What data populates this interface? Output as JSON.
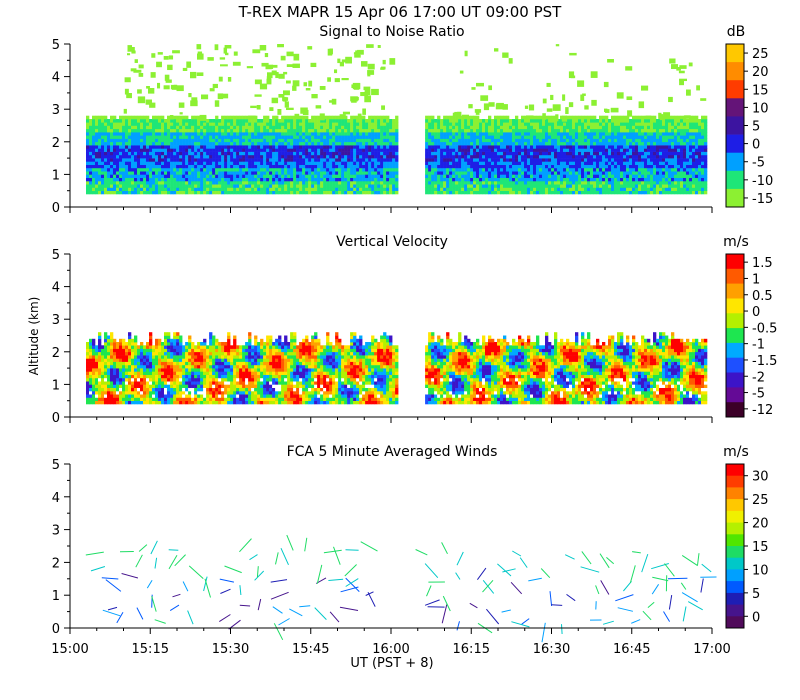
{
  "title": "T-REX  MAPR 15 Apr 06  17:00 UT  09:00  PST",
  "xlabel": "UT  (PST + 8)",
  "ylabel": "Altitude (km)",
  "x_ticks": [
    "15:00",
    "15:15",
    "15:30",
    "15:45",
    "16:00",
    "16:15",
    "16:30",
    "16:45",
    "17:00"
  ],
  "chart_data": [
    {
      "type": "heatmap",
      "title": "Signal to Noise Ratio",
      "unit": "dB",
      "ylim": [
        0,
        5
      ],
      "y_ticks": [
        0,
        1,
        2,
        3,
        4,
        5
      ],
      "xlim_minutes": [
        0,
        120
      ],
      "data_gap_minutes": [
        60,
        66
      ],
      "colorbar_labels": [
        "25",
        "20",
        "15",
        "10",
        "5",
        "0",
        "-5",
        "-10",
        "-15"
      ],
      "colorbar_colors": [
        "#ffc800",
        "#ff8c00",
        "#ff3c00",
        "#641478",
        "#3c14a0",
        "#1e1ee6",
        "#00a0ff",
        "#1ee678",
        "#8cf032"
      ]
    },
    {
      "type": "heatmap",
      "title": "Vertical Velocity",
      "unit": "m/s",
      "ylim": [
        0,
        5
      ],
      "y_ticks": [
        0,
        1,
        2,
        3,
        4,
        5
      ],
      "xlim_minutes": [
        0,
        120
      ],
      "data_gap_minutes": [
        60,
        66
      ],
      "colorbar_labels": [
        "1.5",
        "1",
        "0.5",
        "0",
        "-0.5",
        "-1",
        "-1.5",
        "-2",
        "-5",
        "-12"
      ],
      "colorbar_colors": [
        "#ff0000",
        "#ff5a00",
        "#ffa000",
        "#ffe600",
        "#b4f000",
        "#1ee650",
        "#00aaff",
        "#1e50ff",
        "#3c14c8",
        "#640a96",
        "#3c0028"
      ]
    },
    {
      "type": "scatter",
      "title": "FCA 5 Minute Averaged Winds",
      "unit": "m/s",
      "ylim": [
        0,
        5
      ],
      "y_ticks": [
        0,
        1,
        2,
        3,
        4,
        5
      ],
      "xlim_minutes": [
        0,
        120
      ],
      "colorbar_labels": [
        "30",
        "25",
        "20",
        "15",
        "10",
        "5",
        "0"
      ],
      "colorbar_colors": [
        "#ff0000",
        "#ff3c00",
        "#ff8200",
        "#ffc800",
        "#f0f000",
        "#b4f000",
        "#50e600",
        "#1edc64",
        "#00c8c8",
        "#00a0ff",
        "#005aff",
        "#1e1eb4",
        "#46148c",
        "#500a5a"
      ]
    }
  ]
}
